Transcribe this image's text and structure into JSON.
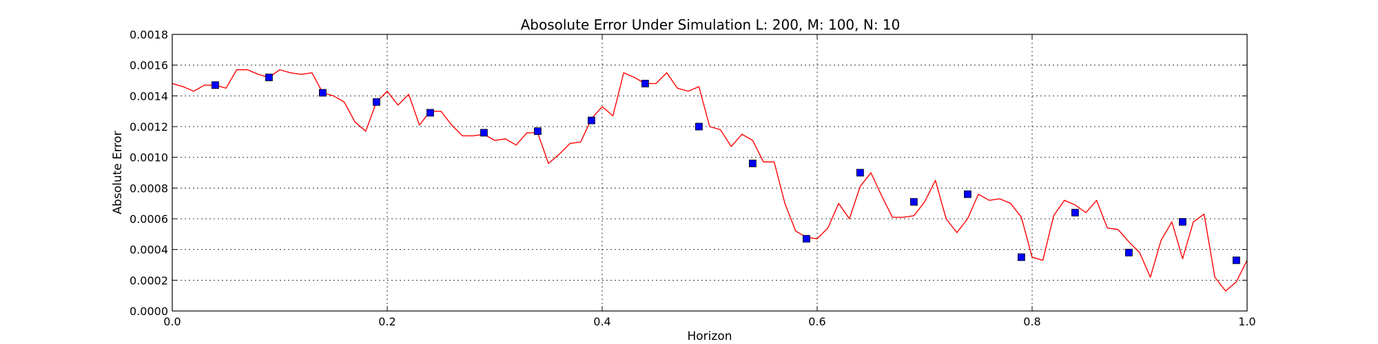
{
  "chart_data": {
    "type": "line",
    "title": "Abosolute Error Under Simulation L: 200, M: 100, N: 10",
    "xlabel": "Horizon",
    "ylabel": "Absolute Error",
    "xlim": [
      0.0,
      1.0
    ],
    "ylim": [
      0.0,
      0.0018
    ],
    "x_ticks": [
      "0.0",
      "0.2",
      "0.4",
      "0.6",
      "0.8",
      "1.0"
    ],
    "y_ticks": [
      "0.0000",
      "0.0002",
      "0.0004",
      "0.0006",
      "0.0008",
      "0.0010",
      "0.0012",
      "0.0014",
      "0.0016",
      "0.0018"
    ],
    "grid": true,
    "series": [
      {
        "style": "line",
        "color": "#ff0000",
        "x": [
          0.0,
          0.01,
          0.02,
          0.03,
          0.04,
          0.05,
          0.06,
          0.07,
          0.08,
          0.09,
          0.1,
          0.11,
          0.12,
          0.13,
          0.14,
          0.15,
          0.16,
          0.17,
          0.18,
          0.19,
          0.2,
          0.21,
          0.22,
          0.23,
          0.24,
          0.25,
          0.26,
          0.27,
          0.28,
          0.29,
          0.3,
          0.31,
          0.32,
          0.33,
          0.34,
          0.35,
          0.36,
          0.37,
          0.38,
          0.39,
          0.4,
          0.41,
          0.42,
          0.43,
          0.44,
          0.45,
          0.46,
          0.47,
          0.48,
          0.49,
          0.5,
          0.51,
          0.52,
          0.53,
          0.54,
          0.55,
          0.56,
          0.57,
          0.58,
          0.59,
          0.6,
          0.61,
          0.62,
          0.63,
          0.64,
          0.65,
          0.66,
          0.67,
          0.68,
          0.69,
          0.7,
          0.71,
          0.72,
          0.73,
          0.74,
          0.75,
          0.76,
          0.77,
          0.78,
          0.79,
          0.8,
          0.81,
          0.82,
          0.83,
          0.84,
          0.85,
          0.86,
          0.87,
          0.88,
          0.89,
          0.9,
          0.91,
          0.92,
          0.93,
          0.94,
          0.95,
          0.96,
          0.97,
          0.98,
          0.99,
          1.0
        ],
        "y": [
          0.00148,
          0.00146,
          0.00143,
          0.00147,
          0.00147,
          0.00145,
          0.00157,
          0.00157,
          0.00154,
          0.00152,
          0.00157,
          0.00155,
          0.00154,
          0.00155,
          0.00142,
          0.0014,
          0.00136,
          0.00123,
          0.00117,
          0.00136,
          0.00143,
          0.00134,
          0.00141,
          0.00121,
          0.0013,
          0.0013,
          0.00121,
          0.00114,
          0.00114,
          0.00115,
          0.00111,
          0.00112,
          0.00108,
          0.00116,
          0.00116,
          0.00096,
          0.00102,
          0.00109,
          0.0011,
          0.00125,
          0.00133,
          0.00127,
          0.00155,
          0.00152,
          0.00148,
          0.00148,
          0.00155,
          0.00145,
          0.00143,
          0.00146,
          0.0012,
          0.00118,
          0.00107,
          0.00115,
          0.00111,
          0.00097,
          0.00097,
          0.0007,
          0.00052,
          0.00048,
          0.00047,
          0.00054,
          0.0007,
          0.0006,
          0.00081,
          0.0009,
          0.00075,
          0.00061,
          0.00061,
          0.00062,
          0.00071,
          0.00085,
          0.0006,
          0.00051,
          0.0006,
          0.00076,
          0.00072,
          0.00073,
          0.0007,
          0.00061,
          0.00035,
          0.00033,
          0.00062,
          0.00072,
          0.00069,
          0.00064,
          0.00072,
          0.00054,
          0.00053,
          0.00045,
          0.00038,
          0.00022,
          0.00046,
          0.00058,
          0.00034,
          0.00058,
          0.00063,
          0.00022,
          0.00013,
          0.00019,
          0.00033
        ]
      },
      {
        "style": "markers",
        "color": "#0000ff",
        "marker": "square",
        "x": [
          0.04,
          0.09,
          0.14,
          0.19,
          0.24,
          0.29,
          0.34,
          0.39,
          0.44,
          0.49,
          0.54,
          0.59,
          0.64,
          0.69,
          0.74,
          0.79,
          0.84,
          0.89,
          0.94,
          0.99
        ],
        "y": [
          0.00147,
          0.00152,
          0.00142,
          0.00136,
          0.00129,
          0.00116,
          0.00117,
          0.00124,
          0.00148,
          0.0012,
          0.00096,
          0.00047,
          0.0009,
          0.00071,
          0.00076,
          0.00035,
          0.00064,
          0.00038,
          0.00058,
          0.00033
        ]
      }
    ]
  }
}
